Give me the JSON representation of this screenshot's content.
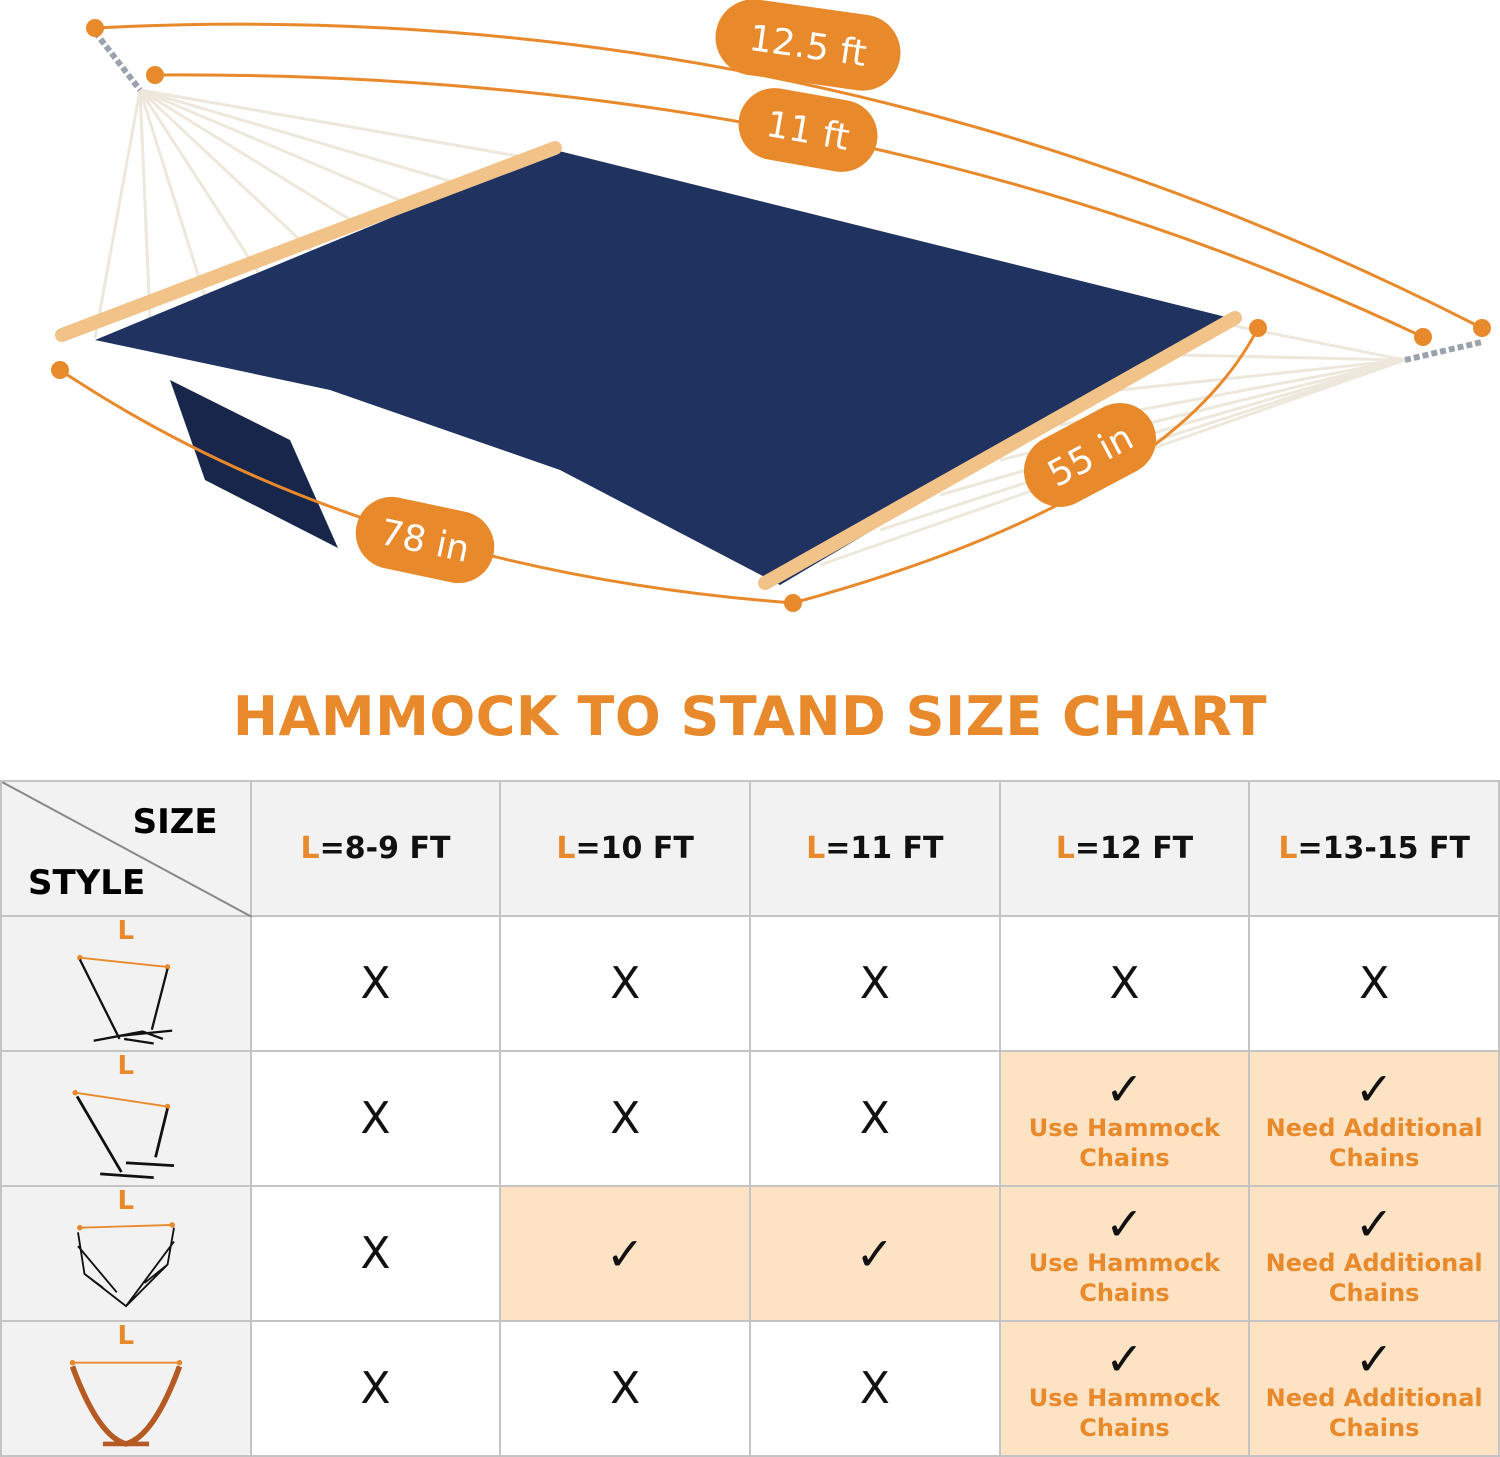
{
  "colors": {
    "accent": "#e8892b",
    "fabric": "#1f3260",
    "highlight": "#fde3c4",
    "header_bg": "#f2f2f2"
  },
  "dimensions": {
    "overall_length": "12.5 ft",
    "bed_length": "11 ft",
    "width": "55 in",
    "bed_side": "78 in"
  },
  "title": "HAMMOCK TO STAND SIZE CHART",
  "table": {
    "corner": {
      "size": "SIZE",
      "style": "STYLE"
    },
    "columns": [
      {
        "prefix": "L",
        "rest": "=8-9 FT"
      },
      {
        "prefix": "L",
        "rest": "=10 FT"
      },
      {
        "prefix": "L",
        "rest": "=11 FT"
      },
      {
        "prefix": "L",
        "rest": "=12 FT"
      },
      {
        "prefix": "L",
        "rest": "=13-15 FT"
      }
    ],
    "rows": [
      {
        "style_label": "L",
        "style_icon": "steel-stand-3-beam-icon",
        "cells": [
          {
            "mark": "X"
          },
          {
            "mark": "X"
          },
          {
            "mark": "X"
          },
          {
            "mark": "X"
          },
          {
            "mark": "X"
          }
        ]
      },
      {
        "style_label": "L",
        "style_icon": "steel-stand-2-beam-icon",
        "cells": [
          {
            "mark": "X"
          },
          {
            "mark": "X"
          },
          {
            "mark": "X"
          },
          {
            "mark": "✓",
            "note1": "Use Hammock",
            "note2": "Chains"
          },
          {
            "mark": "✓",
            "note1": "Need Additional",
            "note2": "Chains"
          }
        ]
      },
      {
        "style_label": "L",
        "style_icon": "folding-stand-icon",
        "cells": [
          {
            "mark": "X"
          },
          {
            "mark": "✓"
          },
          {
            "mark": "✓"
          },
          {
            "mark": "✓",
            "note1": "Use Hammock",
            "note2": "Chains"
          },
          {
            "mark": "✓",
            "note1": "Need Additional",
            "note2": "Chains"
          }
        ]
      },
      {
        "style_label": "L",
        "style_icon": "wooden-arc-stand-icon",
        "cells": [
          {
            "mark": "X"
          },
          {
            "mark": "X"
          },
          {
            "mark": "X"
          },
          {
            "mark": "✓",
            "note1": "Use Hammock",
            "note2": "Chains"
          },
          {
            "mark": "✓",
            "note1": "Need Additional",
            "note2": "Chains"
          }
        ]
      }
    ]
  }
}
